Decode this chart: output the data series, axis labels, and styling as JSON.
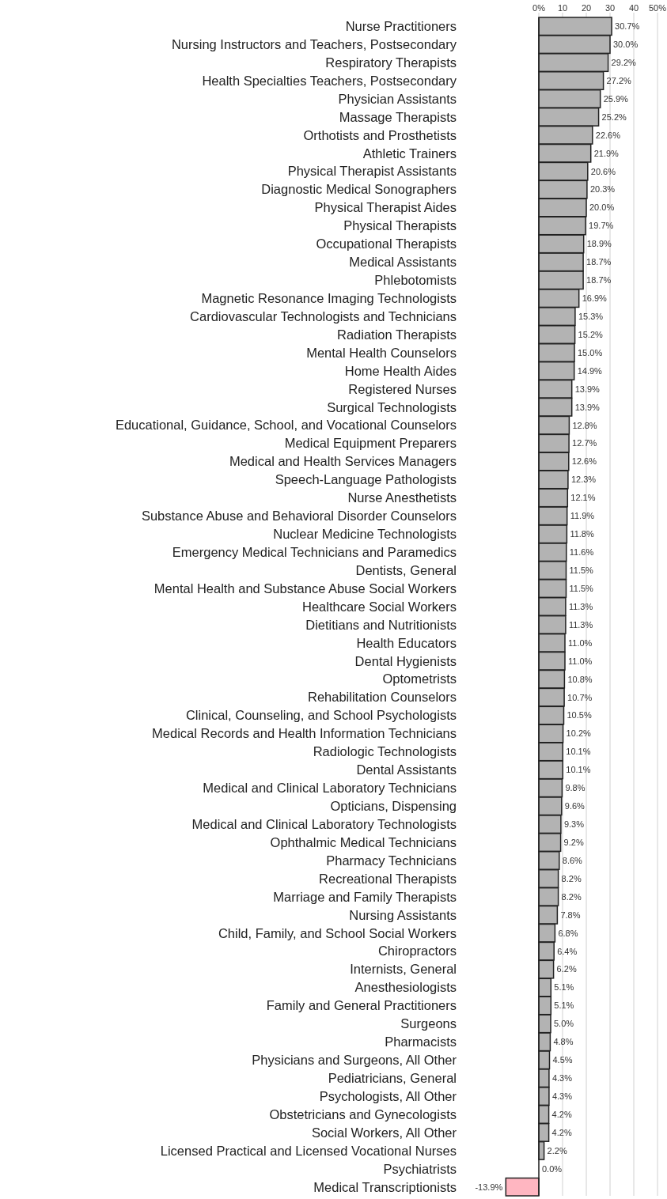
{
  "chart_data": {
    "type": "bar",
    "orientation": "horizontal",
    "categories": [
      "Nurse Practitioners",
      "Nursing Instructors and Teachers, Postsecondary",
      "Respiratory Therapists",
      "Health Specialties Teachers, Postsecondary",
      "Physician Assistants",
      "Massage Therapists",
      "Orthotists and Prosthetists",
      "Athletic Trainers",
      "Physical Therapist Assistants",
      "Diagnostic Medical Sonographers",
      "Physical Therapist Aides",
      "Physical Therapists",
      "Occupational Therapists",
      "Medical Assistants",
      "Phlebotomists",
      "Magnetic Resonance Imaging Technologists",
      "Cardiovascular Technologists and Technicians",
      "Radiation Therapists",
      "Mental Health Counselors",
      "Home Health Aides",
      "Registered Nurses",
      "Surgical Technologists",
      "Educational, Guidance, School, and Vocational Counselors",
      "Medical Equipment Preparers",
      "Medical and Health Services Managers",
      "Speech-Language Pathologists",
      "Nurse Anesthetists",
      "Substance Abuse and Behavioral Disorder Counselors",
      "Nuclear Medicine Technologists",
      "Emergency Medical Technicians and Paramedics",
      "Dentists, General",
      "Mental Health and Substance Abuse Social Workers",
      "Healthcare Social Workers",
      "Dietitians and Nutritionists",
      "Health Educators",
      "Dental Hygienists",
      "Optometrists",
      "Rehabilitation Counselors",
      "Clinical, Counseling, and School Psychologists",
      "Medical Records and Health Information Technicians",
      "Radiologic Technologists",
      "Dental Assistants",
      "Medical and Clinical Laboratory Technicians",
      "Opticians, Dispensing",
      "Medical and Clinical Laboratory Technologists",
      "Ophthalmic Medical Technicians",
      "Pharmacy Technicians",
      "Recreational Therapists",
      "Marriage and Family Therapists",
      "Nursing Assistants",
      "Child, Family, and School Social Workers",
      "Chiropractors",
      "Internists, General",
      "Anesthesiologists",
      "Family and General Practitioners",
      "Surgeons",
      "Pharmacists",
      "Physicians and Surgeons, All Other",
      "Pediatricians, General",
      "Psychologists, All Other",
      "Obstetricians and Gynecologists",
      "Social Workers, All Other",
      "Licensed Practical and Licensed Vocational Nurses",
      "Psychiatrists",
      "Medical Transcriptionists"
    ],
    "values": [
      30.7,
      30.0,
      29.2,
      27.2,
      25.9,
      25.2,
      22.6,
      21.9,
      20.6,
      20.3,
      20.0,
      19.7,
      18.9,
      18.7,
      18.7,
      16.9,
      15.3,
      15.2,
      15.0,
      14.9,
      13.9,
      13.9,
      12.8,
      12.7,
      12.6,
      12.3,
      12.1,
      11.9,
      11.8,
      11.6,
      11.5,
      11.5,
      11.3,
      11.3,
      11.0,
      11.0,
      10.8,
      10.7,
      10.5,
      10.2,
      10.1,
      10.1,
      9.8,
      9.6,
      9.3,
      9.2,
      8.6,
      8.2,
      8.2,
      7.8,
      6.8,
      6.4,
      6.2,
      5.1,
      5.1,
      5.0,
      4.8,
      4.5,
      4.3,
      4.3,
      4.2,
      4.2,
      2.2,
      0.0,
      -13.9
    ],
    "value_labels": [
      "30.7%",
      "30.0%",
      "29.2%",
      "27.2%",
      "25.9%",
      "25.2%",
      "22.6%",
      "21.9%",
      "20.6%",
      "20.3%",
      "20.0%",
      "19.7%",
      "18.9%",
      "18.7%",
      "18.7%",
      "16.9%",
      "15.3%",
      "15.2%",
      "15.0%",
      "14.9%",
      "13.9%",
      "13.9%",
      "12.8%",
      "12.7%",
      "12.6%",
      "12.3%",
      "12.1%",
      "11.9%",
      "11.8%",
      "11.6%",
      "11.5%",
      "11.5%",
      "11.3%",
      "11.3%",
      "11.0%",
      "11.0%",
      "10.8%",
      "10.7%",
      "10.5%",
      "10.2%",
      "10.1%",
      "10.1%",
      "9.8%",
      "9.6%",
      "9.3%",
      "9.2%",
      "8.6%",
      "8.2%",
      "8.2%",
      "7.8%",
      "6.8%",
      "6.4%",
      "6.2%",
      "5.1%",
      "5.1%",
      "5.0%",
      "4.8%",
      "4.5%",
      "4.3%",
      "4.3%",
      "4.2%",
      "4.2%",
      "2.2%",
      "0.0%",
      "-13.9%"
    ],
    "colors": [
      "#b3b3b3",
      "#b3b3b3",
      "#b3b3b3",
      "#b3b3b3",
      "#b3b3b3",
      "#b3b3b3",
      "#b3b3b3",
      "#b3b3b3",
      "#b3b3b3",
      "#b3b3b3",
      "#b3b3b3",
      "#b3b3b3",
      "#b3b3b3",
      "#b3b3b3",
      "#b3b3b3",
      "#b3b3b3",
      "#b3b3b3",
      "#b3b3b3",
      "#b3b3b3",
      "#b3b3b3",
      "#b3b3b3",
      "#b3b3b3",
      "#b3b3b3",
      "#b3b3b3",
      "#b3b3b3",
      "#b3b3b3",
      "#b3b3b3",
      "#b3b3b3",
      "#b3b3b3",
      "#b3b3b3",
      "#b3b3b3",
      "#b3b3b3",
      "#b3b3b3",
      "#b3b3b3",
      "#b3b3b3",
      "#b3b3b3",
      "#b3b3b3",
      "#b3b3b3",
      "#b3b3b3",
      "#b3b3b3",
      "#b3b3b3",
      "#b3b3b3",
      "#b3b3b3",
      "#b3b3b3",
      "#b3b3b3",
      "#b3b3b3",
      "#b3b3b3",
      "#b3b3b3",
      "#b3b3b3",
      "#b3b3b3",
      "#b3b3b3",
      "#b3b3b3",
      "#b3b3b3",
      "#b3b3b3",
      "#b3b3b3",
      "#b3b3b3",
      "#b3b3b3",
      "#b3b3b3",
      "#b3b3b3",
      "#b3b3b3",
      "#b3b3b3",
      "#b3b3b3",
      "#b3b3b3",
      "#b3b3b3",
      "#ffb6c1"
    ],
    "xlim": [
      -14,
      50
    ],
    "xticks": [
      {
        "value": 0,
        "label": "0%"
      },
      10,
      20,
      30,
      40,
      {
        "value": 50,
        "label": "50%"
      }
    ],
    "grid": "x"
  }
}
